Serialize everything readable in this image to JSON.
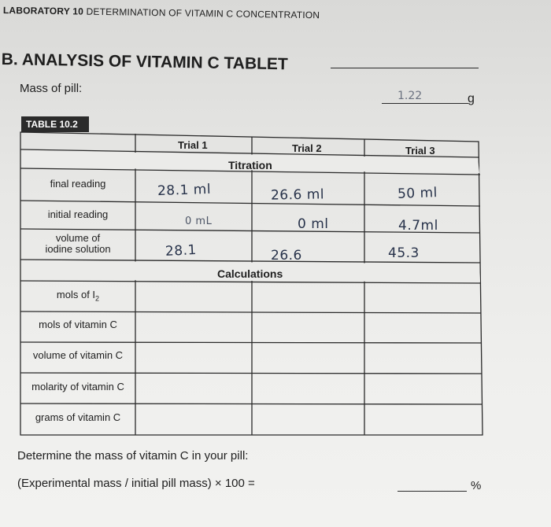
{
  "header": {
    "lab_number": "LABORATORY 10",
    "lab_title": "DETERMINATION OF VITAMIN C CONCENTRATION"
  },
  "section": {
    "title": "B. ANALYSIS OF VITAMIN C TABLET"
  },
  "mass": {
    "label": "Mass of pill:",
    "value": "1.22",
    "unit": "g"
  },
  "table": {
    "badge": "TABLE 10.2",
    "columns": [
      "Trial 1",
      "Trial 2",
      "Trial 3"
    ],
    "titration_label": "Titration",
    "calculations_label": "Calculations",
    "titration_rows": [
      {
        "label": "final reading",
        "values": [
          "28.1 ml",
          "26.6 ml",
          "50 ml"
        ]
      },
      {
        "label": "initial reading",
        "values": [
          "0 mL",
          "0 ml",
          "4.7ml"
        ]
      },
      {
        "label_line1": "volume of",
        "label_line2": "iodine solution",
        "values": [
          "28.1",
          "26.6",
          "45.3"
        ]
      }
    ],
    "calc_rows": [
      {
        "label_main": "mols of I",
        "label_sub": "2"
      },
      {
        "label": "mols of vitamin C"
      },
      {
        "label": "volume of vitamin C"
      },
      {
        "label": "molarity of vitamin C"
      },
      {
        "label": "grams of vitamin C"
      }
    ]
  },
  "footer": {
    "question": "Determine the mass of vitamin C in your pill:",
    "formula": "(Experimental mass / initial pill mass) × 100 =",
    "percent": "%"
  }
}
